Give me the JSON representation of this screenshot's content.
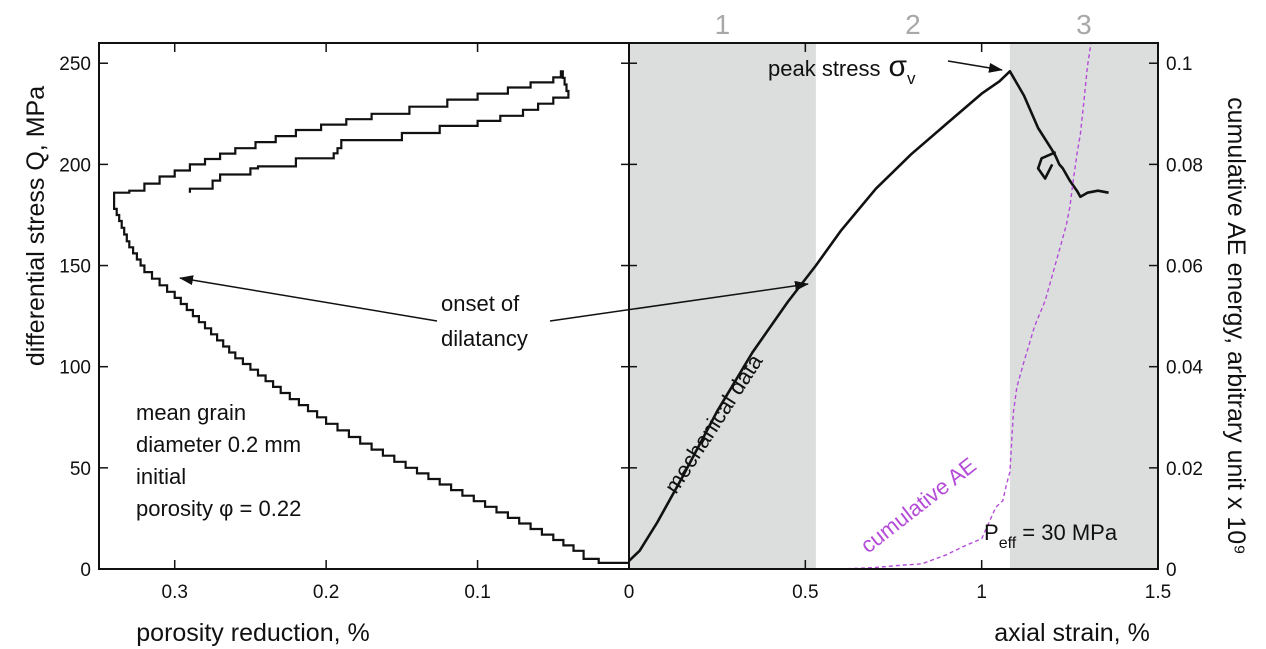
{
  "chart_data": [
    {
      "type": "line",
      "panel": "left",
      "xlabel": "porosity reduction, %",
      "ylabel": "differential stress Q, MPa",
      "xlim": [
        0.35,
        0.0
      ],
      "x_reversed": true,
      "ylim": [
        0,
        260
      ],
      "x_ticks": [
        0.3,
        0.2,
        0.1
      ],
      "y_ticks": [
        0,
        50,
        100,
        150,
        200,
        250
      ],
      "line_color": "#111111",
      "series": [
        {
          "values": [
            [
              0.0,
              3
            ],
            [
              0.01,
              3
            ],
            [
              0.02,
              5
            ],
            [
              0.03,
              9
            ],
            [
              0.05,
              17
            ],
            [
              0.08,
              28
            ],
            [
              0.11,
              39
            ],
            [
              0.14,
              50
            ],
            [
              0.17,
              62
            ],
            [
              0.2,
              75
            ],
            [
              0.23,
              90
            ],
            [
              0.26,
              107
            ],
            [
              0.28,
              122
            ],
            [
              0.3,
              137
            ],
            [
              0.32,
              150
            ],
            [
              0.33,
              162
            ],
            [
              0.335,
              172
            ],
            [
              0.34,
              181
            ],
            [
              0.34,
              186
            ],
            [
              0.33,
              187
            ],
            [
              0.31,
              194
            ],
            [
              0.29,
              200
            ],
            [
              0.26,
              208
            ],
            [
              0.22,
              217
            ],
            [
              0.17,
              225
            ],
            [
              0.12,
              232
            ],
            [
              0.08,
              238
            ],
            [
              0.05,
              243
            ],
            [
              0.045,
              246
            ],
            [
              0.04,
              233
            ],
            [
              0.07,
              224
            ],
            [
              0.1,
              219
            ],
            [
              0.15,
              212
            ],
            [
              0.19,
              208
            ],
            [
              0.195,
              203
            ],
            [
              0.22,
              199
            ],
            [
              0.245,
              198
            ],
            [
              0.25,
              195
            ],
            [
              0.27,
              192
            ],
            [
              0.275,
              188
            ],
            [
              0.29,
              186
            ]
          ]
        }
      ],
      "annotations": [
        {
          "id": "onset",
          "lines": [
            "onset of",
            "dilatancy"
          ]
        },
        {
          "id": "sample",
          "lines": [
            "mean grain",
            "diameter 0.2 mm",
            "initial",
            "porosity φ = 0.22"
          ]
        }
      ]
    },
    {
      "type": "line",
      "panel": "right",
      "xlabel": "axial strain, %",
      "ylabel": "cumulative AE energy, arbitrary unit x 10⁹",
      "xlim": [
        0,
        1.5
      ],
      "ylim_left": [
        0,
        260
      ],
      "ylim_right": [
        0,
        0.104
      ],
      "x_ticks": [
        0,
        0.5,
        1,
        1.5
      ],
      "x_tick_labels": [
        "0",
        "0.5",
        "1",
        "1.5"
      ],
      "y2_ticks": [
        0,
        0.02,
        0.04,
        0.06,
        0.08,
        0.1
      ],
      "y2_tick_labels": [
        "0",
        "0.02",
        "0.04",
        "0.06",
        "0.08",
        "0.1"
      ],
      "shaded_regions": [
        {
          "stage": "1",
          "from": 0.0,
          "to": 0.53,
          "shaded": true,
          "color": "#dcdddd"
        },
        {
          "stage": "2",
          "from": 0.53,
          "to": 1.08,
          "shaded": false
        },
        {
          "stage": "3",
          "from": 1.08,
          "to": 1.5,
          "shaded": true,
          "color": "#dcdddd"
        }
      ],
      "series": [
        {
          "name": "mechanical data",
          "color": "#111111",
          "axis": "left",
          "values": [
            [
              0.0,
              4
            ],
            [
              0.03,
              9
            ],
            [
              0.08,
              23
            ],
            [
              0.15,
              45
            ],
            [
              0.25,
              78
            ],
            [
              0.35,
              107
            ],
            [
              0.45,
              132
            ],
            [
              0.53,
              150
            ],
            [
              0.6,
              167
            ],
            [
              0.7,
              188
            ],
            [
              0.8,
              205
            ],
            [
              0.9,
              220
            ],
            [
              1.0,
              235
            ],
            [
              1.05,
              241
            ],
            [
              1.08,
              246
            ],
            [
              1.12,
              234
            ],
            [
              1.16,
              218
            ],
            [
              1.2,
              207
            ],
            [
              1.21,
              204
            ],
            [
              1.22,
              200
            ],
            [
              1.23,
              198
            ],
            [
              1.25,
              192
            ],
            [
              1.27,
              187
            ],
            [
              1.28,
              184
            ],
            [
              1.3,
              186
            ],
            [
              1.33,
              187
            ],
            [
              1.36,
              186
            ]
          ],
          "branch": [
            [
              1.21,
              206
            ],
            [
              1.17,
              203
            ],
            [
              1.16,
              198
            ],
            [
              1.18,
              193
            ],
            [
              1.2,
              200
            ]
          ]
        },
        {
          "name": "cumulative AE",
          "color": "#b44cd8",
          "axis": "right",
          "dashed": true,
          "values": [
            [
              0.34,
              0.0
            ],
            [
              0.6,
              0.0
            ],
            [
              0.7,
              0.0003
            ],
            [
              0.78,
              0.0008
            ],
            [
              0.83,
              0.001
            ],
            [
              0.9,
              0.0028
            ],
            [
              0.95,
              0.0045
            ],
            [
              1.0,
              0.006
            ],
            [
              1.04,
              0.0122
            ],
            [
              1.06,
              0.0135
            ],
            [
              1.07,
              0.0166
            ],
            [
              1.08,
              0.0192
            ],
            [
              1.09,
              0.031
            ],
            [
              1.1,
              0.036
            ],
            [
              1.12,
              0.041
            ],
            [
              1.15,
              0.048
            ],
            [
              1.18,
              0.053
            ],
            [
              1.2,
              0.058
            ],
            [
              1.22,
              0.063
            ],
            [
              1.24,
              0.068
            ],
            [
              1.25,
              0.0715
            ],
            [
              1.26,
              0.077
            ],
            [
              1.27,
              0.082
            ],
            [
              1.28,
              0.086
            ],
            [
              1.29,
              0.0925
            ],
            [
              1.3,
              0.0995
            ],
            [
              1.31,
              0.104
            ]
          ]
        }
      ],
      "annotations": [
        {
          "id": "peak",
          "text": "peak stress",
          "symbol": "σ",
          "subscript": "v"
        },
        {
          "id": "peff",
          "text": "P",
          "subscript": "eff",
          "suffix": " = 30 MPa"
        }
      ],
      "stage_labels": [
        "1",
        "2",
        "3"
      ]
    }
  ]
}
